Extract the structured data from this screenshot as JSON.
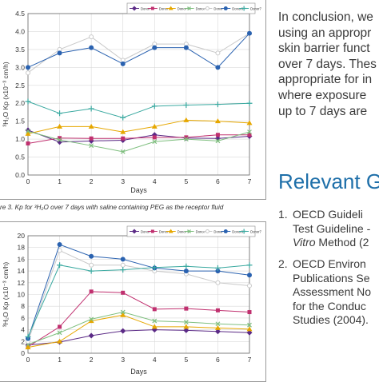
{
  "right_column": {
    "conclusion_lines": [
      "In conclusion, we",
      "using an appropr",
      "skin barrier funct",
      "over 7 days. Thes",
      "appropriate for in",
      "where exposure",
      "up to 7 days are"
    ],
    "heading": "Relevant G",
    "references": [
      {
        "number": "1.",
        "lines": [
          "OECD Guideli",
          "Test Guideline -"
        ],
        "line3_italic": "Vitro",
        "line3_rest": " Method (2"
      },
      {
        "number": "2.",
        "lines": [
          "OECD Environ",
          "Publications Se",
          "Assessment No",
          "for the Conduc",
          "Studies (2004)."
        ]
      }
    ]
  },
  "figure_caption": "re 3. Kp for ³H₂O over 7 days with saline containing PEG as the receptor fluid",
  "colors": {
    "Donor 1": "#5b2a86",
    "Donor 2": "#c0306f",
    "Donor 3": "#e6a700",
    "Donor 4": "#7fbf7f",
    "Donor 5": "#c9c9c9",
    "Donor6": "#2a62b0",
    "Donor7": "#3aa9a0"
  },
  "chart_data": [
    {
      "type": "line",
      "xlabel": "Days",
      "ylabel": "³H₂O Kp (x10⁻³ cm/h)",
      "xlim": [
        0,
        7
      ],
      "ylim": [
        0,
        4.5
      ],
      "x": [
        0,
        1,
        2,
        3,
        4,
        5,
        6,
        7
      ],
      "x_ticks": [
        "0",
        "1",
        "2",
        "3",
        "4",
        "5",
        "6",
        "7"
      ],
      "y_ticks": [
        "0.0",
        "0.5",
        "1.0",
        "1.5",
        "2.0",
        "2.5",
        "3.0",
        "3.5",
        "4.0",
        "4.5"
      ],
      "legend_position": "top",
      "series": [
        {
          "name": "Donor 1",
          "marker": "diamond",
          "values": [
            1.25,
            0.92,
            0.95,
            0.97,
            1.12,
            1.03,
            1.02,
            1.08
          ]
        },
        {
          "name": "Donor 2",
          "marker": "square",
          "values": [
            0.88,
            1.03,
            1.02,
            1.02,
            1.05,
            1.05,
            1.12,
            1.12
          ]
        },
        {
          "name": "Donor 3",
          "marker": "triangle",
          "values": [
            1.15,
            1.35,
            1.35,
            1.2,
            1.35,
            1.53,
            1.5,
            1.45
          ]
        },
        {
          "name": "Donor 4",
          "marker": "x",
          "values": [
            1.22,
            0.98,
            0.82,
            0.65,
            0.93,
            1.0,
            0.95,
            1.2
          ]
        },
        {
          "name": "Donor 5",
          "marker": "circle-open",
          "values": [
            2.85,
            3.5,
            3.85,
            3.2,
            3.65,
            3.65,
            3.4,
            3.95
          ]
        },
        {
          "name": "Donor6",
          "marker": "circle",
          "values": [
            3.0,
            3.4,
            3.55,
            3.1,
            3.55,
            3.55,
            3.0,
            3.95
          ]
        },
        {
          "name": "Donor7",
          "marker": "plus",
          "values": [
            2.05,
            1.72,
            1.85,
            1.6,
            1.92,
            1.95,
            1.97,
            2.0
          ]
        }
      ]
    },
    {
      "type": "line",
      "xlabel": "Days",
      "ylabel": "³H₂O Kp (x10⁻³ cm/h)",
      "xlim": [
        0,
        7
      ],
      "ylim": [
        0,
        20
      ],
      "x": [
        0,
        1,
        2,
        3,
        4,
        5,
        6,
        7
      ],
      "x_ticks": [
        "0",
        "1",
        "2",
        "3",
        "4",
        "5",
        "6",
        "7"
      ],
      "y_ticks": [
        "0",
        "2",
        "4",
        "6",
        "8",
        "10",
        "12",
        "14",
        "16",
        "18",
        "20"
      ],
      "legend_position": "top",
      "series": [
        {
          "name": "Donor 1",
          "marker": "diamond",
          "values": [
            1.4,
            1.9,
            3.0,
            3.8,
            4.0,
            3.9,
            3.7,
            3.5
          ]
        },
        {
          "name": "Donor 2",
          "marker": "square",
          "values": [
            1.1,
            4.5,
            10.5,
            10.3,
            7.5,
            7.6,
            7.3,
            7.0
          ]
        },
        {
          "name": "Donor 3",
          "marker": "triangle",
          "values": [
            1.0,
            2.0,
            5.5,
            6.5,
            4.5,
            4.5,
            4.3,
            4.1
          ]
        },
        {
          "name": "Donor 4",
          "marker": "x",
          "values": [
            1.5,
            3.5,
            5.8,
            7.0,
            5.5,
            5.3,
            5.0,
            4.8
          ]
        },
        {
          "name": "Donor 5",
          "marker": "circle-open",
          "values": [
            2.0,
            17.5,
            15.0,
            15.0,
            14.0,
            13.5,
            12.0,
            11.5
          ]
        },
        {
          "name": "Donor6",
          "marker": "circle",
          "values": [
            2.5,
            18.5,
            16.5,
            16.0,
            14.5,
            14.0,
            14.0,
            13.3
          ]
        },
        {
          "name": "Donor7",
          "marker": "plus",
          "values": [
            2.8,
            15.0,
            14.0,
            14.2,
            14.6,
            14.8,
            14.5,
            15.0
          ]
        }
      ]
    }
  ]
}
